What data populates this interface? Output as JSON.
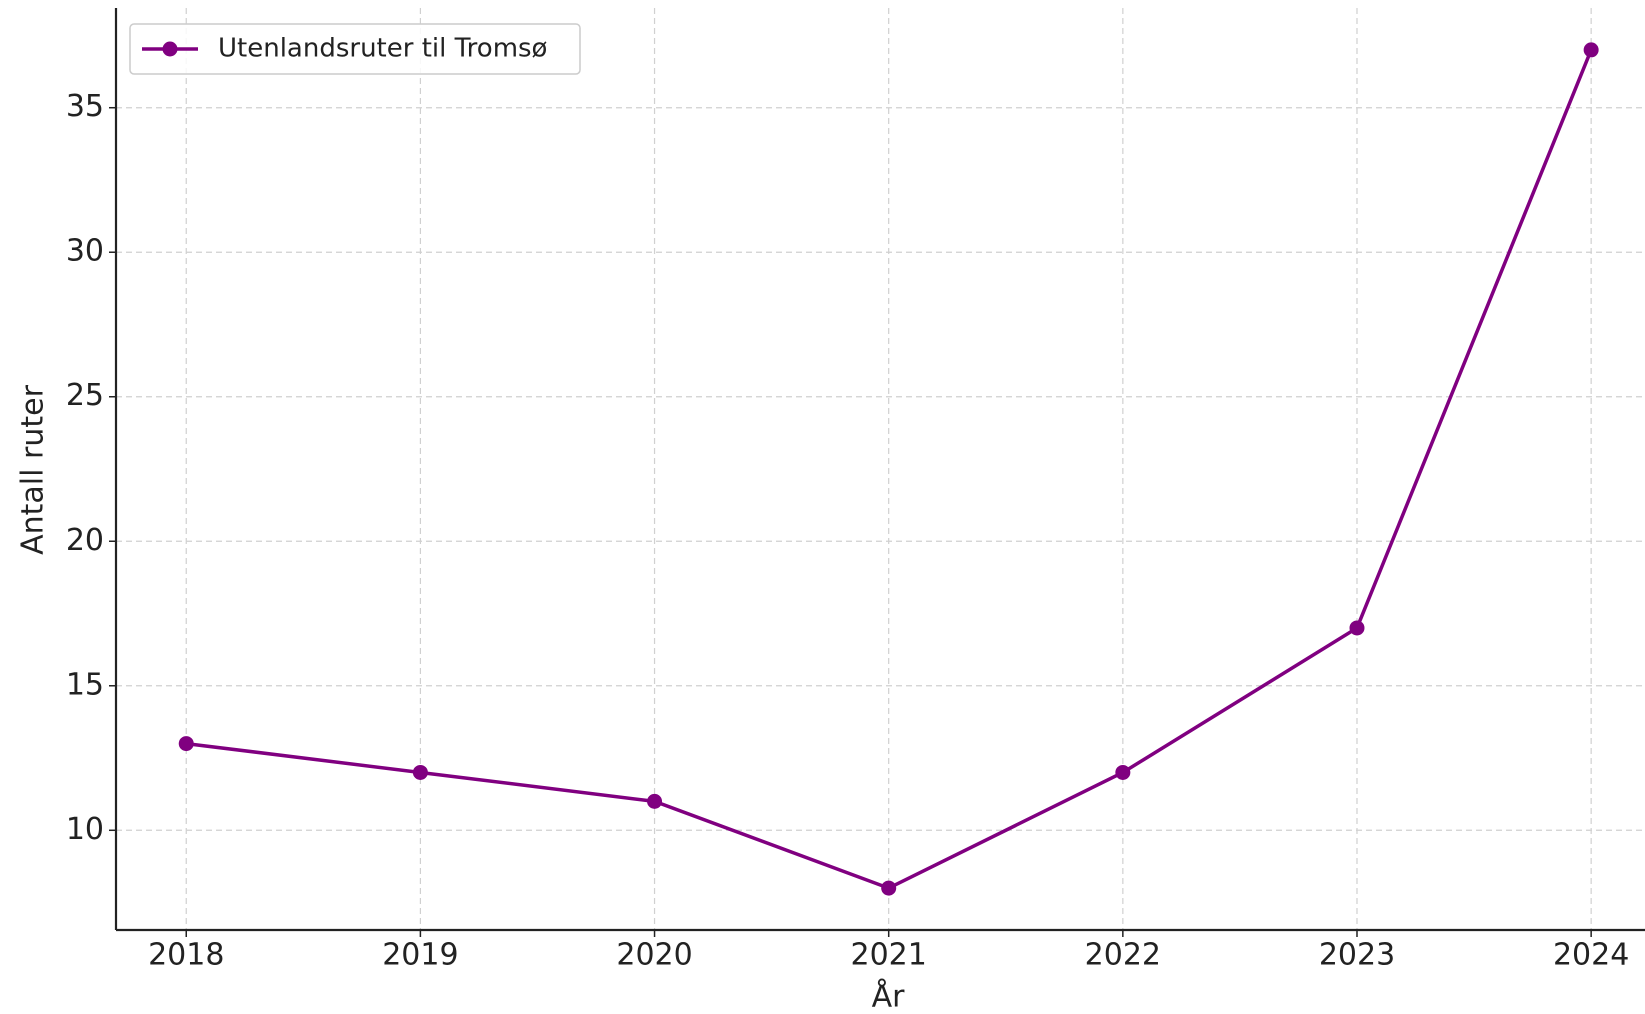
{
  "chart_data": {
    "type": "line",
    "x_label": "År",
    "y_label": "Antall ruter",
    "x": [
      2018,
      2019,
      2020,
      2021,
      2022,
      2023,
      2024
    ],
    "series": [
      {
        "name": "Utenlandsruter til Tromsø",
        "color": "#800080",
        "values": [
          13,
          12,
          11,
          8,
          12,
          17,
          37
        ]
      }
    ],
    "xlim": [
      2017.7,
      2024.23
    ],
    "xticks": [
      2018,
      2019,
      2020,
      2021,
      2022,
      2023,
      2024
    ],
    "ylim": [
      6.55,
      38.45
    ],
    "yticks": [
      10,
      15,
      20,
      25,
      30,
      35
    ],
    "grid": true,
    "legend": "upper left"
  }
}
